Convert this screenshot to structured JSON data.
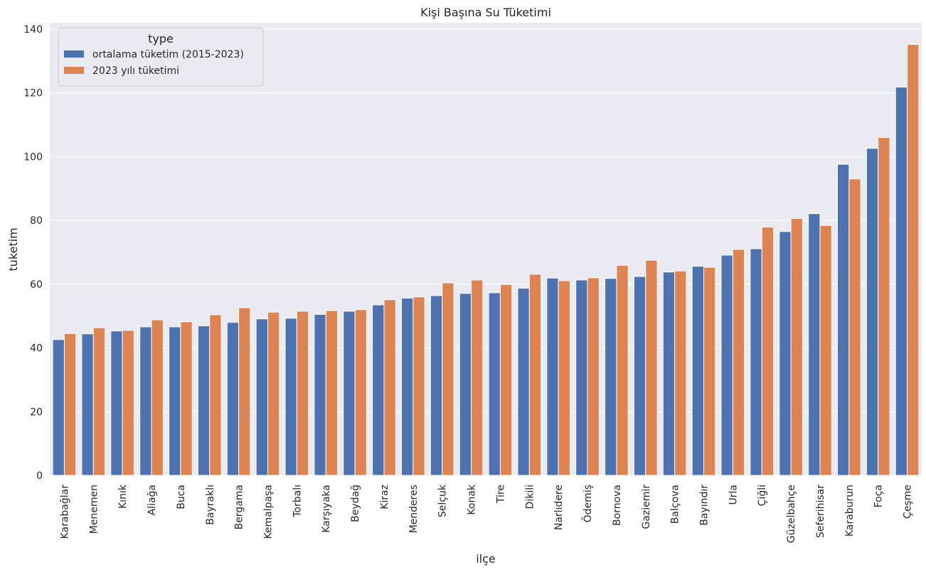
{
  "chart_data": {
    "type": "bar",
    "title": "Kişi Başına Su Tüketimi",
    "xlabel": "ilçe",
    "ylabel": "tuketim",
    "ylim": [
      0,
      140
    ],
    "yticks": [
      0,
      20,
      40,
      60,
      80,
      100,
      120,
      140
    ],
    "grid": true,
    "legend": {
      "title": "type",
      "placement": "top-left"
    },
    "categories": [
      "Karabağlar",
      "Menemen",
      "Kınık",
      "Aliağa",
      "Buca",
      "Bayraklı",
      "Bergama",
      "Kemalpaşa",
      "Torbalı",
      "Karşıyaka",
      "Beydağ",
      "Kiraz",
      "Menderes",
      "Selçuk",
      "Konak",
      "Tire",
      "Dikili",
      "Narlıdere",
      "Ödemiş",
      "Bornova",
      "Gaziemir",
      "Balçova",
      "Bayındır",
      "Urla",
      "Çiğli",
      "Güzelbahçe",
      "Seferihisar",
      "Karaburun",
      "Foça",
      "Çeşme"
    ],
    "series": [
      {
        "name": "ortalama tüketim (2015-2023)",
        "color": "#4c72b0",
        "values": [
          42.6,
          44.4,
          45.3,
          46.6,
          46.6,
          46.9,
          48.0,
          49.1,
          49.3,
          50.5,
          51.5,
          53.5,
          55.6,
          56.4,
          57.1,
          57.3,
          58.7,
          61.9,
          61.3,
          61.8,
          62.4,
          63.8,
          65.6,
          69.1,
          71.1,
          76.5,
          82.1,
          97.6,
          102.6,
          121.8
        ]
      },
      {
        "name": "2023 yılı tüketimi",
        "color": "#dd8452",
        "values": [
          44.5,
          46.3,
          45.5,
          48.8,
          48.2,
          50.4,
          52.6,
          51.2,
          51.5,
          51.7,
          52.0,
          55.1,
          56.0,
          60.4,
          61.3,
          59.9,
          63.1,
          61.1,
          62.0,
          65.9,
          67.5,
          64.1,
          65.3,
          70.9,
          77.9,
          80.6,
          78.4,
          93.0,
          106.0,
          135.2
        ]
      }
    ]
  }
}
